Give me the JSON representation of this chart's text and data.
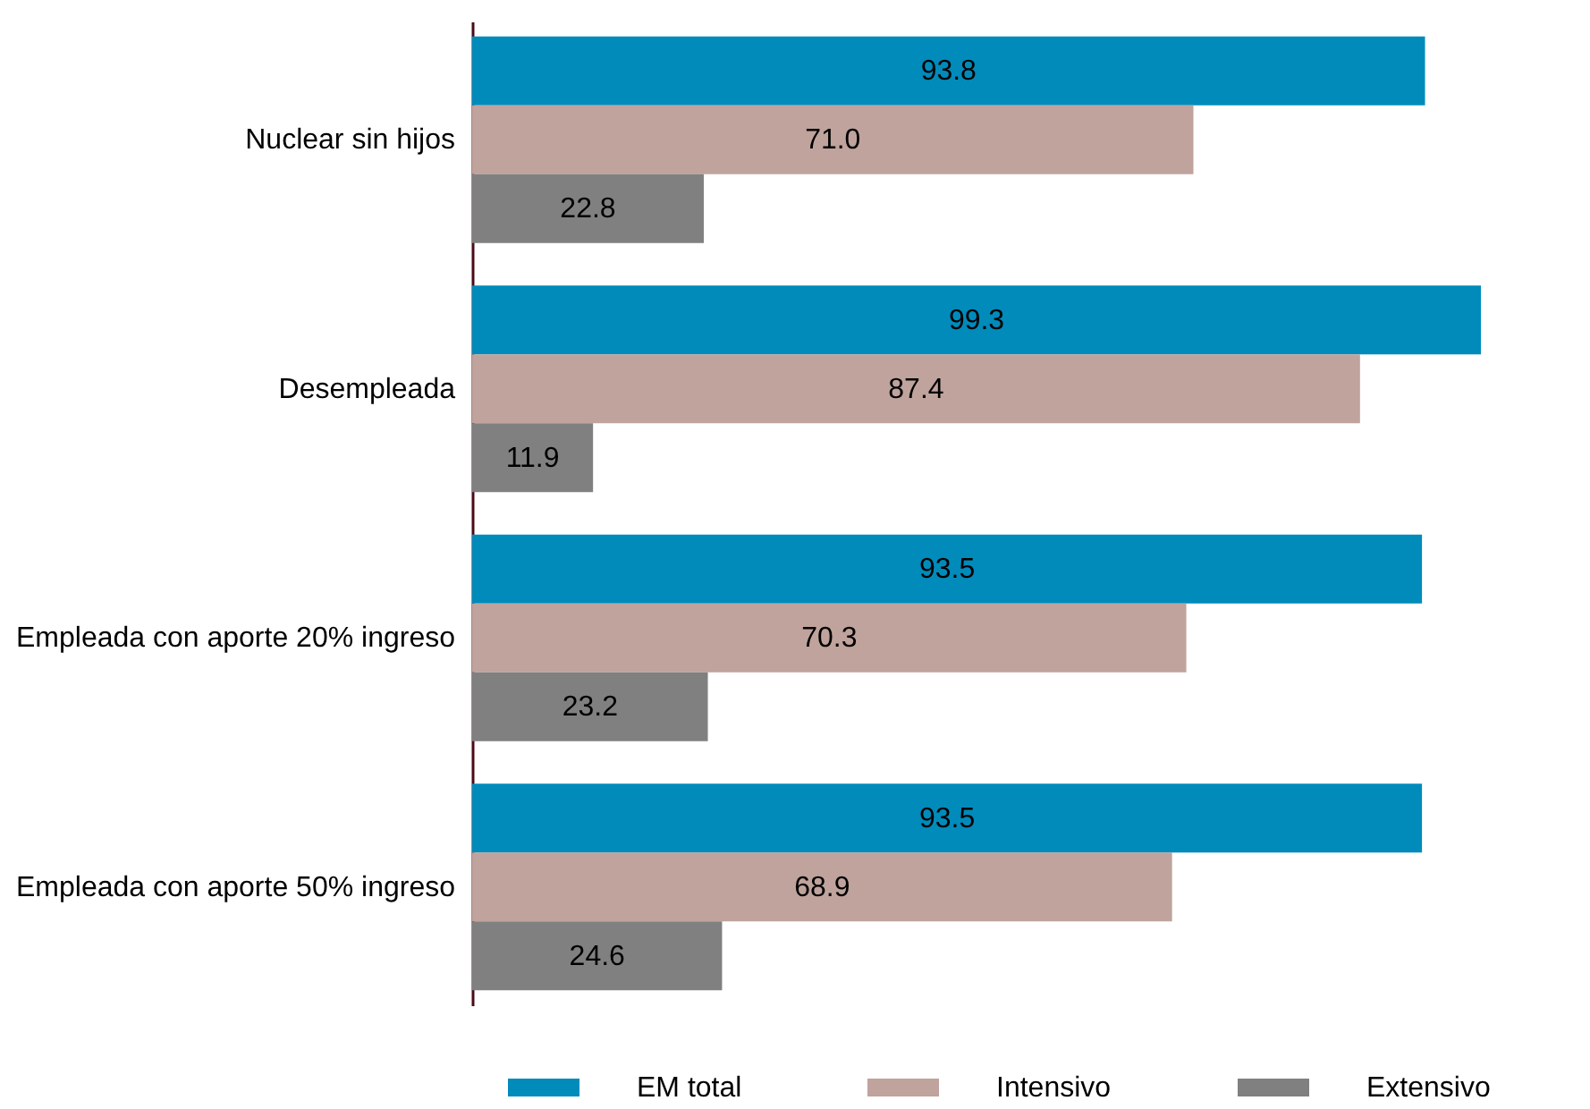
{
  "chart_data": {
    "type": "bar",
    "orientation": "horizontal",
    "data_labels": true,
    "legend": "bottom",
    "categories": [
      "Nuclear sin hijos",
      "Desempleada",
      "Empleada con aporte 20% ingreso",
      "Empleada con aporte 50% ingreso"
    ],
    "series": [
      {
        "name": "EM total",
        "color": "#008bbb",
        "values": [
          93.8,
          99.3,
          93.5,
          93.5
        ],
        "value_labels": [
          "93.8",
          "99.3",
          "93.5",
          "93.5"
        ]
      },
      {
        "name": "Intensivo",
        "color": "#bfa39c",
        "values": [
          71.0,
          87.4,
          70.3,
          68.9
        ],
        "value_labels": [
          "71.0",
          "87.4",
          "70.3",
          "68.9"
        ]
      },
      {
        "name": "Extensivo",
        "color": "#808080",
        "values": [
          22.8,
          11.9,
          23.2,
          24.6
        ],
        "value_labels": [
          "22.8",
          "11.9",
          "23.2",
          "24.6"
        ]
      }
    ]
  }
}
